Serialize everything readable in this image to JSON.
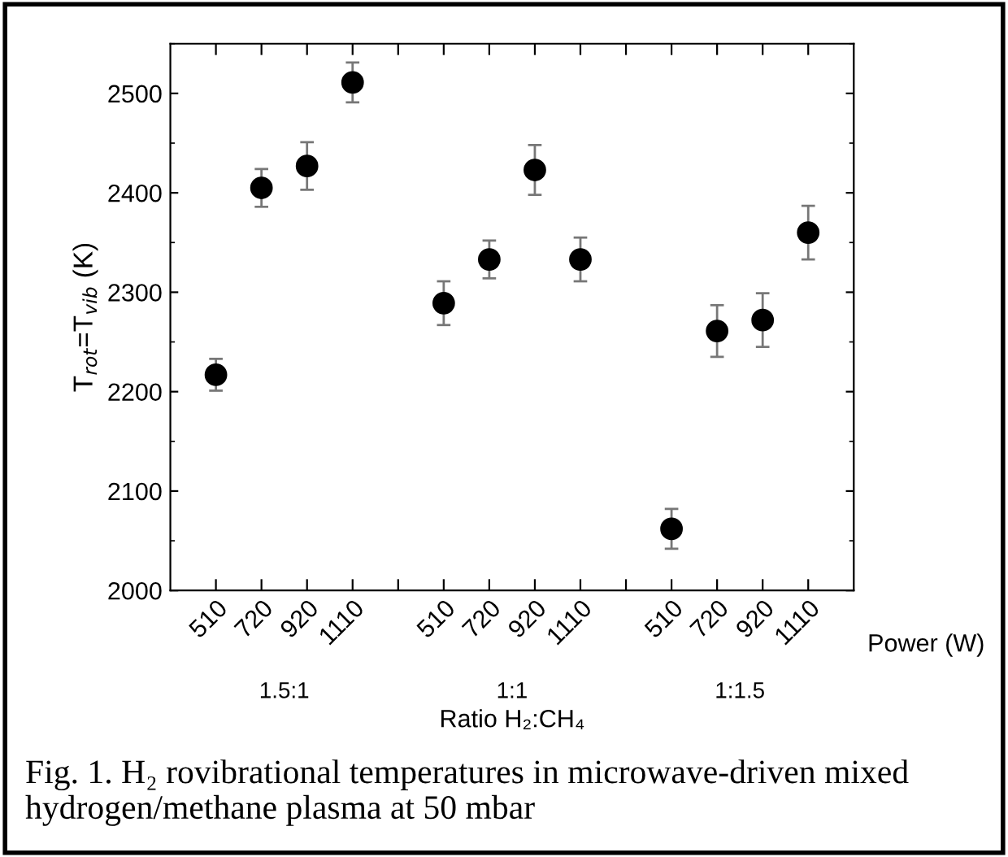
{
  "chart_data": {
    "type": "scatter",
    "xlabel": "Power (W)",
    "ylabel": "T$_{rot}$=T$_{vib}$ (K)",
    "categories": [
      "510",
      "720",
      "920",
      "1110",
      null,
      "510",
      "720",
      "920",
      "1110",
      null,
      "510",
      "720",
      "920",
      "1110"
    ],
    "values": [
      2217,
      2405,
      2427,
      2511,
      null,
      2289,
      2333,
      2423,
      2333,
      null,
      2062,
      2261,
      2272,
      2360
    ],
    "errors": [
      16,
      19,
      24,
      20,
      null,
      22,
      19,
      25,
      22,
      null,
      20,
      26,
      27,
      27
    ],
    "color": "#000000",
    "marker": "circle",
    "ylim": [
      2000,
      2550
    ],
    "yticks": [
      2000,
      2100,
      2200,
      2300,
      2400,
      2500
    ],
    "grid": false,
    "annotations": [
      "1.5:1",
      "1:1",
      "1:1.5",
      "Ratio H₂:CH₄",
      "Fig. 1. H₂ rovibrational temperatures in microwave-driven mixed hydrogen/methane plasma at 50 mbar"
    ]
  }
}
